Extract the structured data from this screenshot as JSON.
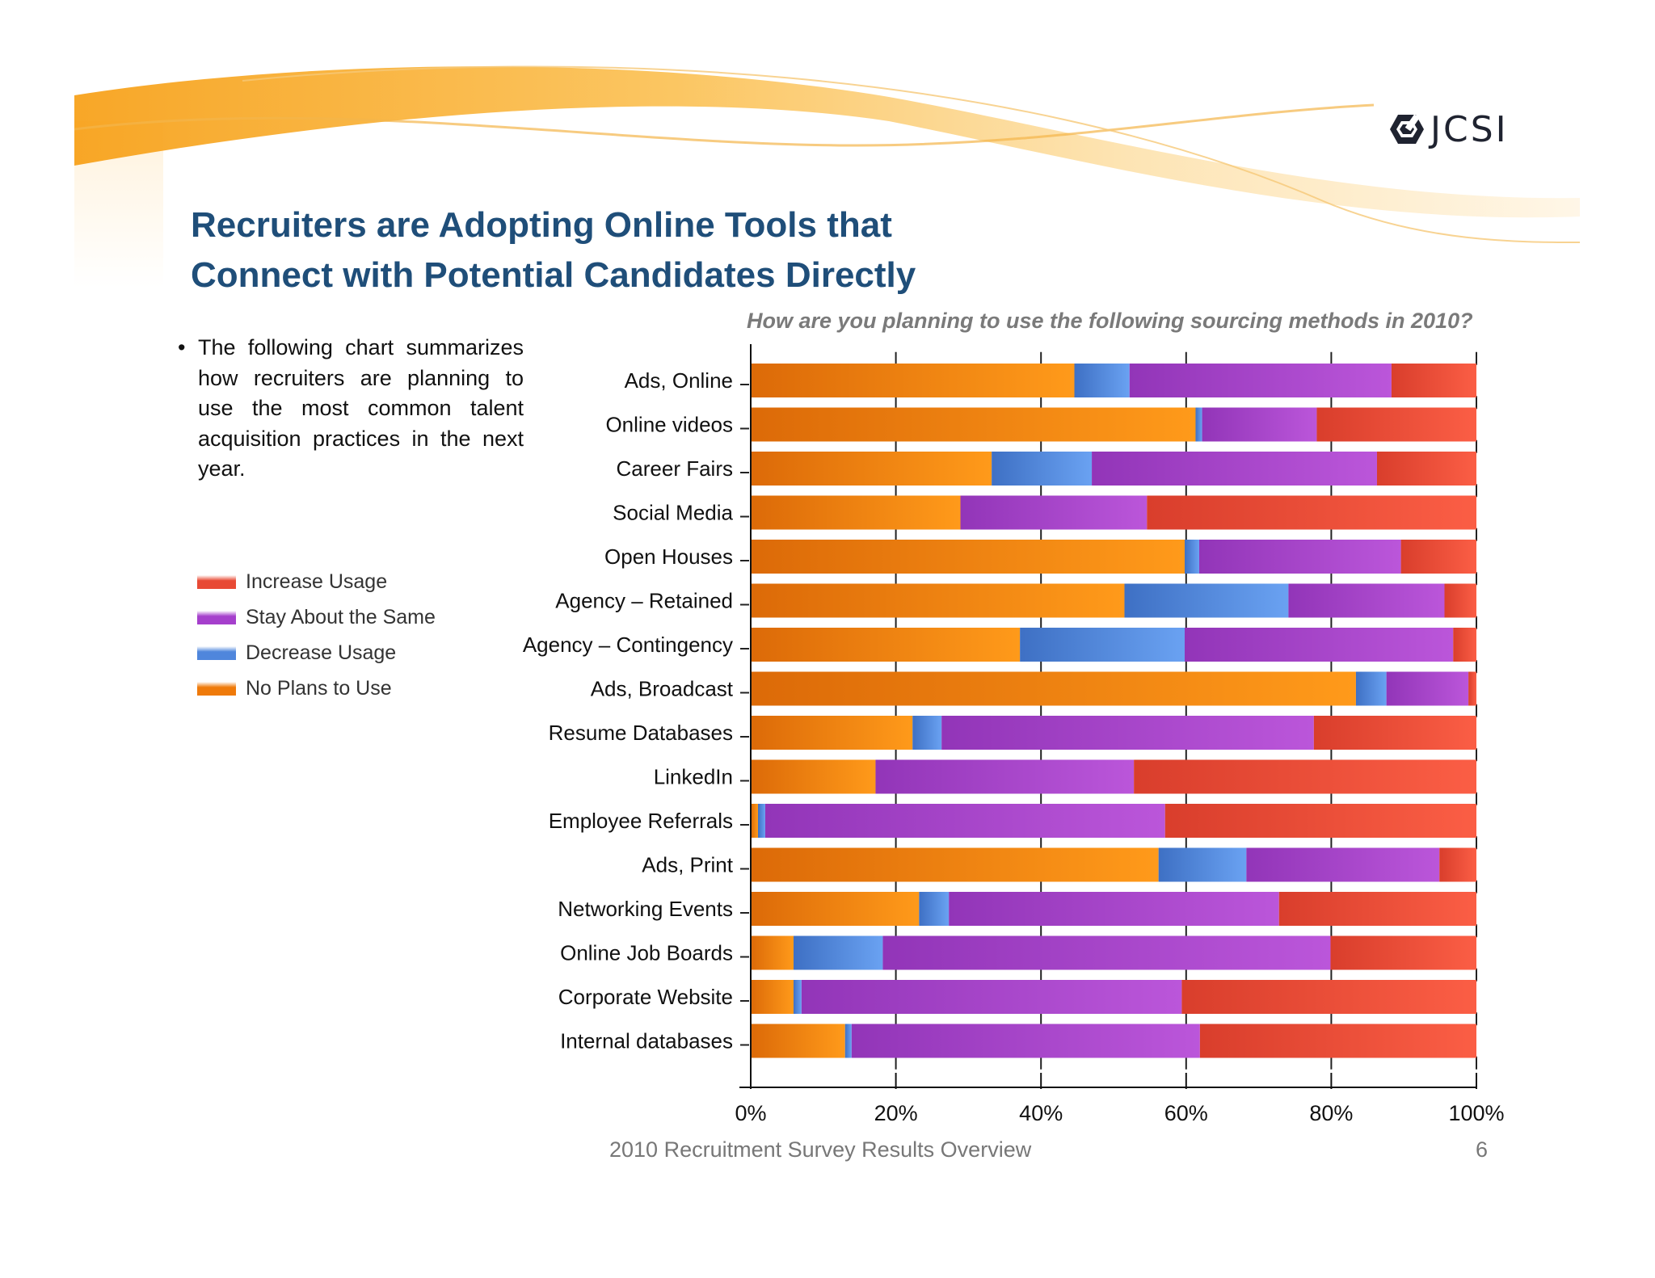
{
  "header": {
    "logo_text": "JCSI",
    "title_line1": "Recruiters are Adopting Online Tools that",
    "title_line2": "Connect with Potential Candidates Directly"
  },
  "bullet": {
    "symbol": "•",
    "text": "The following chart summarizes how recruiters are planning to use the most common talent acquisition practices in the next year."
  },
  "legend": [
    {
      "label": "Increase Usage",
      "color": "#e84a35"
    },
    {
      "label": "Stay About the Same",
      "color": "#a53fcc"
    },
    {
      "label": "Decrease Usage",
      "color": "#4f86dc"
    },
    {
      "label": "No Plans to Use",
      "color": "#ef7a0a"
    }
  ],
  "footer": {
    "text": "2010 Recruitment Survey Results Overview",
    "page": "6"
  },
  "chart_data": {
    "type": "bar",
    "orientation": "horizontal",
    "stacked": "percent",
    "title": "How are you planning to use the following sourcing methods in 2010?",
    "categories": [
      "Ads, Online",
      "Online videos",
      "Career Fairs",
      "Social Media",
      "Open Houses",
      "Agency – Retained",
      "Agency – Contingency",
      "Ads,  Broadcast",
      "Resume Databases",
      "LinkedIn",
      "Employee Referrals",
      "Ads, Print",
      "Networking Events",
      "Online Job Boards",
      "Corporate Website",
      "Internal databases"
    ],
    "series": [
      {
        "name": "No Plans to Use",
        "color": "#ef7a0a",
        "values": [
          44.6,
          61.3,
          33.2,
          28.9,
          59.8,
          51.5,
          37.1,
          83.4,
          22.3,
          17.2,
          1.0,
          56.2,
          23.2,
          5.9,
          5.9,
          13.0
        ]
      },
      {
        "name": "Decrease Usage",
        "color": "#4f86dc",
        "values": [
          7.6,
          0.9,
          13.8,
          0.0,
          2.0,
          22.6,
          22.7,
          4.2,
          4.0,
          0.0,
          1.0,
          12.1,
          4.1,
          12.3,
          1.1,
          0.9
        ]
      },
      {
        "name": "Stay About the Same",
        "color": "#a53fcc",
        "values": [
          36.1,
          15.8,
          39.3,
          25.7,
          27.8,
          21.5,
          37.0,
          11.3,
          51.3,
          35.6,
          55.1,
          26.6,
          45.5,
          61.7,
          52.4,
          48.0
        ]
      },
      {
        "name": "Increase Usage",
        "color": "#e84a35",
        "values": [
          11.7,
          22.0,
          13.7,
          45.4,
          10.4,
          4.4,
          3.2,
          1.1,
          22.4,
          47.2,
          42.9,
          5.1,
          27.2,
          20.1,
          40.6,
          38.1
        ]
      }
    ],
    "xlim": [
      0,
      100
    ],
    "x_ticks": [
      "0%",
      "20%",
      "40%",
      "60%",
      "80%",
      "100%"
    ],
    "legend_position": "left"
  }
}
